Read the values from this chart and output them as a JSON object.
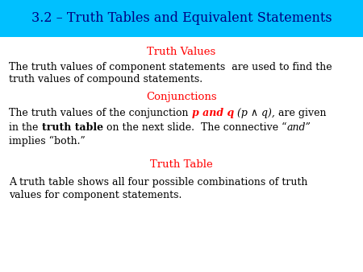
{
  "title": "3.2 – Truth Tables and Equivalent Statements",
  "title_bg_color": "#00C0FF",
  "title_color": "#000080",
  "title_fontsize": 11.5,
  "body_bg_color": "#FFFFFF",
  "red_color": "#FF0000",
  "black_color": "#000000",
  "heading_fontsize": 9.5,
  "body_fontsize": 9.0,
  "truth_values_heading": "Truth Values",
  "conjunctions_heading": "Conjunctions",
  "truth_table_heading": "Truth Table",
  "body1_line1": "The truth values of component statements  are used to find the",
  "body1_line2": "truth values of compound statements.",
  "body3_line1": "A truth table shows all four possible combinations of truth",
  "body3_line2": "values for component statements.",
  "implies_line": "implies “both.”",
  "conj_before": "The truth values of the conjunction ",
  "conj_pandq": "p and q",
  "conj_pq_italic": " (p ∧ q),",
  "conj_after": " are given",
  "line2_before_tt": "in the ",
  "line2_tt": "truth table",
  "line2_after_tt": " on the next slide.  The connective “",
  "line2_and": "and”"
}
